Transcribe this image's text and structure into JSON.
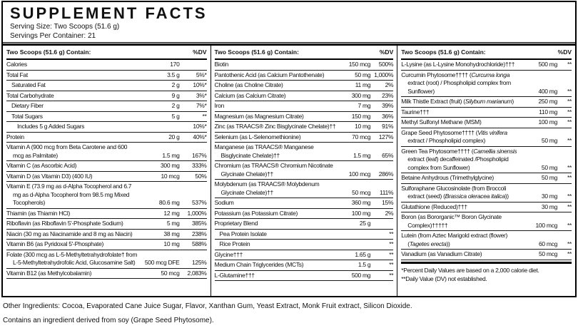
{
  "header": {
    "title": "SUPPLEMENT FACTS",
    "serving_size": "Serving Size: Two Scoops (51.6 g)",
    "servings_per_container": "Servings Per Container: 21"
  },
  "columns": [
    {
      "header": {
        "label": "Two Scoops (51.6 g) Contain:",
        "dv_label": "%DV"
      },
      "rows": [
        {
          "name": "Calories",
          "amount": "170",
          "dv": "",
          "indent": 0
        },
        {
          "name": "Total Fat",
          "amount": "3.5 g",
          "dv": "5%*",
          "indent": 0
        },
        {
          "name": "Saturated Fat",
          "amount": "2 g",
          "dv": "10%*",
          "indent": 1
        },
        {
          "name": "Total Carbohydrate",
          "amount": "9 g",
          "dv": "3%*",
          "indent": 0
        },
        {
          "name": "Dietary Fiber",
          "amount": "2 g",
          "dv": "7%*",
          "indent": 1
        },
        {
          "name": "Total Sugars",
          "amount": "5 g",
          "dv": "**",
          "indent": 1
        },
        {
          "name": "Includes 5 g Added Sugars",
          "amount": "",
          "dv": "10%*",
          "indent": 2
        },
        {
          "name": "Protein",
          "amount": "20 g",
          "dv": "40%*",
          "indent": 0
        },
        {
          "name": "Vitamin A (900 mcg from Beta Carotene and 600 mcg as Palmitate)",
          "amount": "1.5 mg",
          "dv": "167%",
          "indent": 0
        },
        {
          "name": "Vitamin C (as Ascorbic Acid)",
          "amount": "300 mg",
          "dv": "333%",
          "indent": 0
        },
        {
          "name": "Vitamin D (as Vitamin D3) (400 IU)",
          "amount": "10 mcg",
          "dv": "50%",
          "indent": 0
        },
        {
          "name": "Vitamin E (73.9 mg as d-Alpha Tocopherol and 6.7 mg as d-Alpha Tocopherol from 98.5 mg Mixed Tocopherols)",
          "amount": "80.6 mg",
          "dv": "537%",
          "indent": 0
        },
        {
          "name": "Thiamin (as Thiamin HCl)",
          "amount": "12 mg",
          "dv": "1,000%",
          "indent": 0
        },
        {
          "name": "Riboflavin (as Riboflavin 5'-Phosphate Sodium)",
          "amount": "5 mg",
          "dv": "385%",
          "indent": 0
        },
        {
          "name": "Niacin (30 mg as Niacinamide and 8 mg as Niacin)",
          "amount": "38 mg",
          "dv": "238%",
          "indent": 0
        },
        {
          "name": "Vitamin B6 (as Pyridoxal 5'-Phosphate)",
          "amount": "10 mg",
          "dv": "588%",
          "indent": 0
        },
        {
          "name": "Folate (300 mcg as L-5-Methyltetrahydrofolate† from L-5-Methyltetrahydrofolic Acid, Glucosamine Salt)",
          "amount": "500 mcg DFE",
          "dv": "125%",
          "indent": 0
        },
        {
          "name": "Vitamin B12 (as Methylcobalamin)",
          "amount": "50 mcg",
          "dv": "2,083%",
          "indent": 0
        }
      ]
    },
    {
      "header": {
        "label": "Two Scoops (51.6 g) Contain:",
        "dv_label": "%DV"
      },
      "rows": [
        {
          "name": "Biotin",
          "amount": "150 mcg",
          "dv": "500%",
          "indent": 0
        },
        {
          "name": "Pantothenic Acid (as Calcium Pantothenate)",
          "amount": "50 mg",
          "dv": "1,000%",
          "indent": 0
        },
        {
          "name": "Choline (as Choline Citrate)",
          "amount": "11 mg",
          "dv": "2%",
          "indent": 0
        },
        {
          "name": "Calcium (as Calcium Citrate)",
          "amount": "300 mg",
          "dv": "23%",
          "indent": 0
        },
        {
          "name": "Iron",
          "amount": "7 mg",
          "dv": "39%",
          "indent": 0
        },
        {
          "name": "Magnesium (as Magnesium Citrate)",
          "amount": "150 mg",
          "dv": "36%",
          "indent": 0
        },
        {
          "name": "Zinc (as TRAACS® Zinc Bisglycinate Chelate)††",
          "amount": "10 mg",
          "dv": "91%",
          "indent": 0
        },
        {
          "name": "Selenium (as L-Selenomethionine)",
          "amount": "70 mcg",
          "dv": "127%",
          "indent": 0
        },
        {
          "name": "Manganese (as TRAACS® Manganese Bisglycinate Chelate)††",
          "amount": "1.5 mg",
          "dv": "65%",
          "indent": 0
        },
        {
          "name": "Chromium (as TRAACS® Chromium Nicotinate Glycinate Chelate)††",
          "amount": "100 mcg",
          "dv": "286%",
          "indent": 0
        },
        {
          "name": "Molybdenum (as TRAACS® Molybdenum Glycinate Chelate)††",
          "amount": "50 mcg",
          "dv": "111%",
          "indent": 0
        },
        {
          "name": "Sodium",
          "amount": "360 mg",
          "dv": "15%",
          "indent": 0
        },
        {
          "name": "Potassium (as Potassium Citrate)",
          "amount": "100 mg",
          "dv": "2%",
          "indent": 0
        },
        {
          "name": "Proprietary Blend",
          "amount": "25 g",
          "dv": "",
          "indent": 0
        },
        {
          "name": "Pea Protein Isolate",
          "amount": "",
          "dv": "**",
          "indent": 1
        },
        {
          "name": "Rice Protein",
          "amount": "",
          "dv": "**",
          "indent": 1
        },
        {
          "name": "Glycine†††",
          "amount": "1.65 g",
          "dv": "**",
          "indent": 0
        },
        {
          "name": "Medium Chain Triglycerides (MCTs)",
          "amount": "1.5 g",
          "dv": "**",
          "indent": 0
        },
        {
          "name": "L-Glutamine†††",
          "amount": "500 mg",
          "dv": "**",
          "indent": 0
        }
      ]
    },
    {
      "header": {
        "label": "Two Scoops (51.6 g) Contain:",
        "dv_label": "%DV"
      },
      "rows": [
        {
          "name": "L-Lysine (as L-Lysine Monohydrochloride)†††",
          "amount": "500 mg",
          "dv": "**",
          "indent": 0
        },
        {
          "name": "Curcumin Phytosome†††† (*Curcuma longa* extract (root) / Phospholipid complex from Sunflower)",
          "amount": "400 mg",
          "dv": "**",
          "indent": 0
        },
        {
          "name": "Milk Thistle Extract (fruit) (*Silybum marianum*)",
          "amount": "250 mg",
          "dv": "**",
          "indent": 0
        },
        {
          "name": "Taurine†††",
          "amount": "110 mg",
          "dv": "**",
          "indent": 0
        },
        {
          "name": "Methyl Sulfonyl Methane (MSM)",
          "amount": "100 mg",
          "dv": "**",
          "indent": 0
        },
        {
          "name": "Grape Seed Phytosome†††† (*Vitis vinifera* extract / Phospholipid complex)",
          "amount": "50 mg",
          "dv": "**",
          "indent": 0
        },
        {
          "name": "Green Tea Phytosome†††† (*Camellia sinensis* extract (leaf) decaffeinated /Phospholipid complex from Sunflower)",
          "amount": "50 mg",
          "dv": "**",
          "indent": 0
        },
        {
          "name": "Betaine Anhydrous (Trimethylglycine)",
          "amount": "50 mg",
          "dv": "**",
          "indent": 0
        },
        {
          "name": "Sulforaphane Glucosinolate (from Broccoli extract (seed) (*Brassica oleracea italica*))",
          "amount": "30 mg",
          "dv": "**",
          "indent": 0
        },
        {
          "name": "Glutathione (Reduced)†††",
          "amount": "30 mg",
          "dv": "**",
          "indent": 0
        },
        {
          "name": "Boron (as Bororganic™ Boron Glycinate Complex)†††††",
          "amount": "100 mcg",
          "dv": "**",
          "indent": 0
        },
        {
          "name": "Lutein (from Aztec Marigold extract (flower) (*Tagetes erecta*))",
          "amount": "60 mcg",
          "dv": "**",
          "indent": 0
        },
        {
          "name": "Vanadium (as Vanadium Citrate)",
          "amount": "50 mcg",
          "dv": "**",
          "indent": 0
        }
      ]
    }
  ],
  "footnotes": [
    "*Percent Daily Values are based on a 2,000 calorie diet.",
    "**Daily Value (DV) not established."
  ],
  "footer": {
    "other_ingredients": "Other Ingredients: Cocoa, Evaporated Cane Juice Sugar, Flavor, Xanthan Gum, Yeast Extract, Monk Fruit extract, Silicon Dioxide.",
    "contains": "Contains an ingredient derived from soy (Grape Seed Phytosome)."
  }
}
